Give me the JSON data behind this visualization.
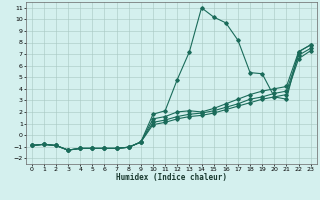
{
  "xlabel": "Humidex (Indice chaleur)",
  "bg_color": "#d4f0ee",
  "line_color": "#1a6b5a",
  "xlim": [
    -0.5,
    23.5
  ],
  "ylim": [
    -2.5,
    11.5
  ],
  "xticks": [
    0,
    1,
    2,
    3,
    4,
    5,
    6,
    7,
    8,
    9,
    10,
    11,
    12,
    13,
    14,
    15,
    16,
    17,
    18,
    19,
    20,
    21,
    22,
    23
  ],
  "yticks": [
    -2,
    -1,
    0,
    1,
    2,
    3,
    4,
    5,
    6,
    7,
    8,
    9,
    10,
    11
  ],
  "line1_x": [
    0,
    1,
    2,
    3,
    4,
    5,
    6,
    7,
    8,
    9,
    10,
    11,
    12,
    13,
    14,
    15,
    16,
    17,
    18,
    19,
    20,
    21,
    22,
    23
  ],
  "line1_y": [
    -0.9,
    -0.8,
    -0.9,
    -1.3,
    -1.15,
    -1.15,
    -1.15,
    -1.15,
    -1.05,
    -0.6,
    1.8,
    2.1,
    4.8,
    7.2,
    11.0,
    10.2,
    9.7,
    8.2,
    5.4,
    5.3,
    3.3,
    3.1,
    7.2,
    7.8
  ],
  "line2_x": [
    0,
    1,
    2,
    3,
    4,
    5,
    6,
    7,
    8,
    9,
    10,
    11,
    12,
    13,
    14,
    15,
    16,
    17,
    18,
    19,
    20,
    21,
    22,
    23
  ],
  "line2_y": [
    -0.9,
    -0.8,
    -0.9,
    -1.3,
    -1.15,
    -1.15,
    -1.15,
    -1.15,
    -1.05,
    -0.6,
    1.4,
    1.6,
    2.0,
    2.1,
    2.0,
    2.3,
    2.7,
    3.1,
    3.5,
    3.8,
    4.0,
    4.2,
    7.2,
    7.8
  ],
  "line3_x": [
    0,
    1,
    2,
    3,
    4,
    5,
    6,
    7,
    8,
    9,
    10,
    11,
    12,
    13,
    14,
    15,
    16,
    17,
    18,
    19,
    20,
    21,
    22,
    23
  ],
  "line3_y": [
    -0.9,
    -0.8,
    -0.9,
    -1.3,
    -1.15,
    -1.15,
    -1.15,
    -1.15,
    -1.05,
    -0.6,
    1.1,
    1.3,
    1.6,
    1.8,
    1.9,
    2.1,
    2.4,
    2.7,
    3.1,
    3.3,
    3.6,
    3.8,
    6.9,
    7.5
  ],
  "line4_x": [
    0,
    1,
    2,
    3,
    4,
    5,
    6,
    7,
    8,
    9,
    10,
    11,
    12,
    13,
    14,
    15,
    16,
    17,
    18,
    19,
    20,
    21,
    22,
    23
  ],
  "line4_y": [
    -0.9,
    -0.8,
    -0.9,
    -1.3,
    -1.15,
    -1.15,
    -1.15,
    -1.15,
    -1.05,
    -0.6,
    0.9,
    1.1,
    1.4,
    1.6,
    1.7,
    1.9,
    2.2,
    2.5,
    2.8,
    3.1,
    3.3,
    3.5,
    6.6,
    7.3
  ]
}
